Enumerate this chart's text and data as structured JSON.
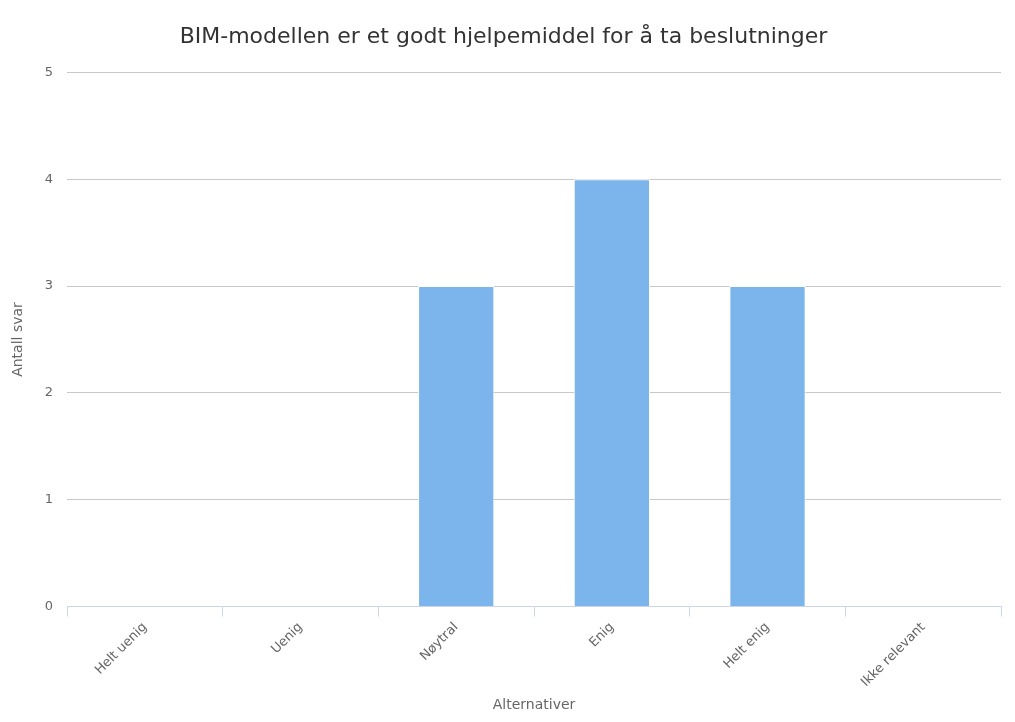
{
  "chart_data": {
    "type": "bar",
    "title": "BIM-modellen er et godt hjelpemiddel for å ta beslutninger",
    "xlabel": "Alternativer",
    "ylabel": "Antall svar",
    "categories": [
      "Helt uenig",
      "Uenig",
      "Nøytral",
      "Enig",
      "Helt enig",
      "Ikke relevant"
    ],
    "values": [
      0,
      0,
      3,
      4,
      3,
      0
    ],
    "color": "#7cb5ec",
    "ylim": [
      0,
      5
    ],
    "yticks": [
      0,
      1,
      2,
      3,
      4,
      5
    ],
    "grid": "y",
    "legend": false
  }
}
